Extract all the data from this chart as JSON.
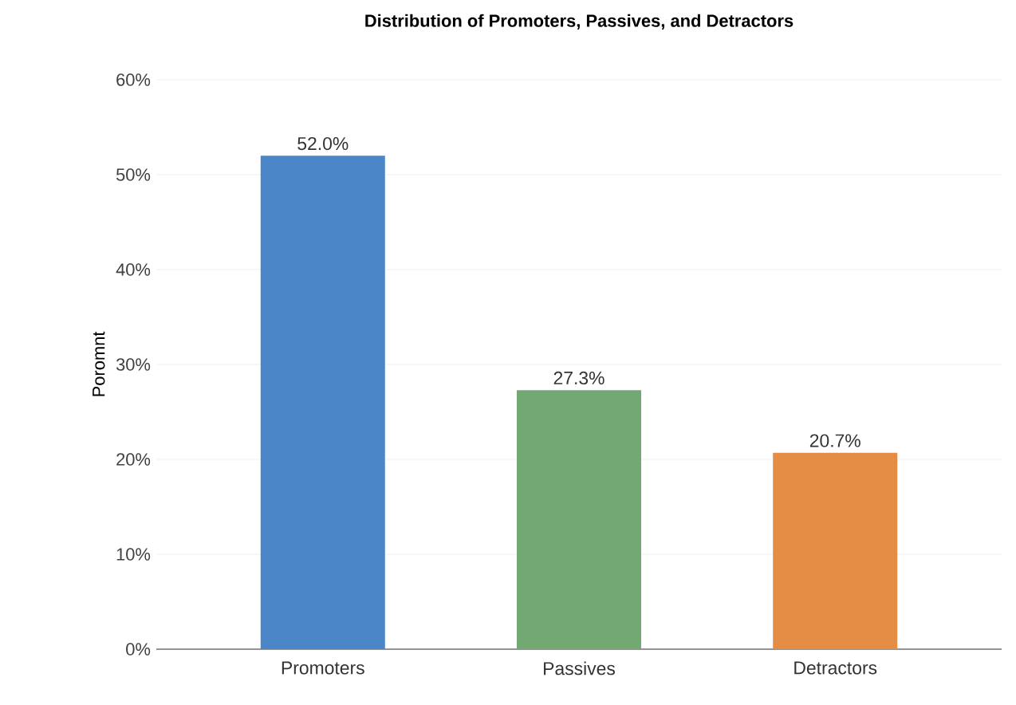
{
  "chart_data": {
    "type": "bar",
    "title": "Distribution of Promoters, Passives, and Detractors",
    "ylabel": "Poromnt",
    "categories": [
      "Promoters",
      "Passives",
      "Detractors"
    ],
    "values": [
      52.0,
      27.3,
      20.7
    ],
    "colors": [
      "#4a86c8",
      "#72a872",
      "#e58c45"
    ],
    "value_labels": [
      "52.0%",
      "27.3%",
      "20.7%"
    ],
    "ylim": [
      0,
      60
    ],
    "yticks": [
      {
        "value": 0,
        "label": "0%"
      },
      {
        "value": 10,
        "label": "10%"
      },
      {
        "value": 20,
        "label": "20%"
      },
      {
        "value": 30,
        "label": "30%"
      },
      {
        "value": 40,
        "label": "40%"
      },
      {
        "value": 50,
        "label": "50%"
      },
      {
        "value": 60,
        "label": "60%"
      }
    ],
    "grid": "y"
  }
}
